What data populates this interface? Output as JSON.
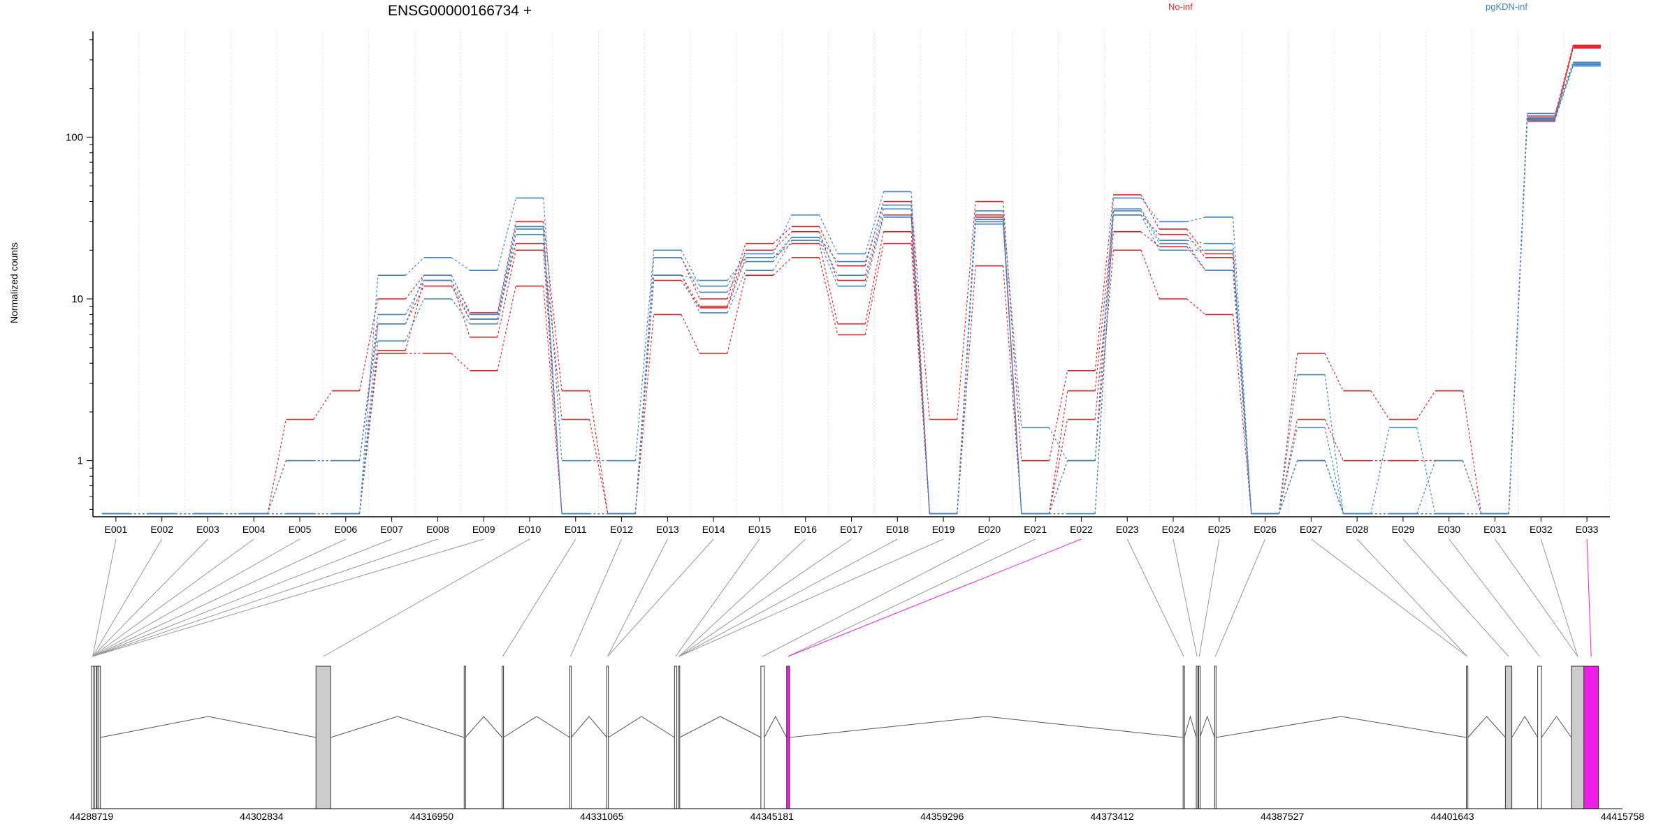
{
  "chart_data": {
    "type": "line",
    "title": "ENSG00000166734 +",
    "ylabel": "Normalized counts",
    "yscale": "log",
    "ylim": [
      0.45,
      450
    ],
    "yticks": [
      1,
      10,
      100
    ],
    "ytick_labels": [
      "1",
      "10",
      "100"
    ],
    "grid": "vertical dotted lines at exon boundaries",
    "legend": [
      "No-inf",
      "pgKDN-inf"
    ],
    "legend_placement": "top",
    "colors": {
      "No-inf": "#e0242b",
      "pgKDN-inf": "#3f86c6",
      "highlight": "#ee1ee6",
      "exon": "#cccccc"
    },
    "categories": [
      "E001",
      "E002",
      "E003",
      "E004",
      "E005",
      "E006",
      "E007",
      "E008",
      "E009",
      "E010",
      "E011",
      "E012",
      "E013",
      "E014",
      "E015",
      "E016",
      "E017",
      "E018",
      "E019",
      "E020",
      "E021",
      "E022",
      "E023",
      "E024",
      "E025",
      "E026",
      "E027",
      "E028",
      "E029",
      "E030",
      "E031",
      "E032",
      "E033"
    ],
    "series": [
      {
        "name": "No-inf",
        "values": [
          0.47,
          0.47,
          0.47,
          0.47,
          1.8,
          2.7,
          10,
          14,
          8.2,
          30,
          2.7,
          0.47,
          18,
          10,
          22,
          28,
          16,
          40,
          1.8,
          40,
          1.0,
          3.6,
          44,
          27,
          19,
          0.47,
          4.6,
          2.7,
          1.8,
          2.7,
          0.47,
          135,
          370
        ]
      },
      {
        "name": "No-inf",
        "values": [
          0.47,
          0.47,
          0.47,
          0.47,
          1.0,
          1.0,
          7.0,
          12,
          7.5,
          22,
          1.8,
          0.47,
          14,
          9,
          20,
          26,
          13,
          33,
          0.47,
          33,
          0.47,
          2.7,
          33,
          25,
          18,
          0.47,
          1.8,
          1.0,
          1.0,
          1.0,
          0.47,
          128,
          360
        ]
      },
      {
        "name": "No-inf",
        "values": [
          0.47,
          0.47,
          0.47,
          0.47,
          0.47,
          0.47,
          4.6,
          4.6,
          3.6,
          12,
          0.47,
          0.47,
          8,
          4.6,
          14,
          18,
          6,
          22,
          0.47,
          16,
          0.47,
          1.0,
          20,
          10,
          8,
          0.47,
          1.0,
          0.47,
          0.47,
          0.47,
          0.47,
          125,
          355
        ]
      },
      {
        "name": "No-inf",
        "values": [
          0.47,
          0.47,
          0.47,
          0.47,
          0.47,
          0.47,
          4.8,
          13,
          5.8,
          20,
          0.47,
          0.47,
          13,
          8.8,
          18,
          22,
          7,
          26,
          0.47,
          32,
          0.47,
          1.8,
          26,
          21,
          15,
          0.47,
          1.0,
          0.47,
          0.47,
          0.47,
          0.47,
          130,
          365
        ]
      },
      {
        "name": "pgKDN-inf",
        "values": [
          0.47,
          0.47,
          0.47,
          0.47,
          0.47,
          0.47,
          14,
          18,
          15,
          42,
          1.0,
          1.0,
          20,
          12,
          19,
          33,
          19,
          46,
          0.47,
          35,
          1.6,
          1.0,
          42,
          30,
          32,
          0.47,
          3.4,
          0.47,
          0.47,
          0.47,
          0.47,
          140,
          290
        ]
      },
      {
        "name": "pgKDN-inf",
        "values": [
          0.47,
          0.47,
          0.47,
          0.47,
          1.0,
          1.0,
          8,
          13,
          7.5,
          27,
          0.47,
          0.47,
          18,
          11,
          17,
          24,
          17,
          38,
          0.47,
          30,
          0.47,
          0.47,
          36,
          23,
          22,
          0.47,
          1.6,
          0.47,
          1.6,
          0.47,
          0.47,
          132,
          285
        ]
      },
      {
        "name": "pgKDN-inf",
        "values": [
          0.47,
          0.47,
          0.47,
          0.47,
          0.47,
          0.47,
          5.5,
          10,
          7.0,
          25,
          0.47,
          0.47,
          14,
          8.2,
          15,
          23,
          12,
          32,
          0.47,
          29,
          0.47,
          0.47,
          33,
          20,
          20,
          0.47,
          1.0,
          0.47,
          0.47,
          0.47,
          0.47,
          127,
          275
        ]
      },
      {
        "name": "pgKDN-inf",
        "values": [
          0.47,
          0.47,
          0.47,
          0.47,
          0.47,
          0.47,
          7,
          14,
          8.0,
          28,
          0.47,
          0.47,
          14,
          13,
          18,
          24,
          14,
          36,
          0.47,
          31,
          0.47,
          1.0,
          35,
          22,
          15,
          0.47,
          1.0,
          0.47,
          0.47,
          1.0,
          0.47,
          129,
          280
        ]
      }
    ],
    "gene_model": {
      "xlabels": [
        "44288719",
        "44302834",
        "44316950",
        "44331065",
        "44345181",
        "44359296",
        "44373412",
        "44387527",
        "44401643",
        "44415758"
      ],
      "highlighted_exons": [
        "E022",
        "E033"
      ]
    }
  }
}
